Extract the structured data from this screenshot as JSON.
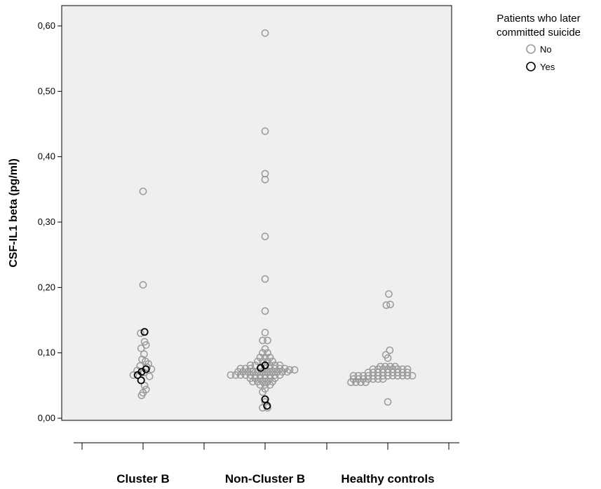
{
  "chart_data": {
    "type": "scatter",
    "title": "",
    "xlabel": "",
    "ylabel": "CSF-IL1 beta (pg/ml)",
    "ylim": [
      -0.02,
      0.64
    ],
    "yticks": [
      0.0,
      0.1,
      0.2,
      0.3,
      0.4,
      0.5,
      0.6
    ],
    "ytick_labels": [
      "0,00",
      "0,10",
      "0,20",
      "0,30",
      "0,40",
      "0,50",
      "0,60"
    ],
    "categories": [
      "Cluster B",
      "Non-Cluster B",
      "Healthy controls"
    ],
    "grid": false,
    "legend": {
      "title_lines": [
        "Patients who later",
        "committed suicide"
      ],
      "position": "top-right, outside plot",
      "entries": [
        {
          "label": "No",
          "color": "#9a9a9a"
        },
        {
          "label": "Yes",
          "color": "#000000"
        }
      ]
    },
    "series": [
      {
        "name": "No",
        "color": "#9a9a9a",
        "points": [
          {
            "category": 0,
            "offset": 0,
            "y": 0.347
          },
          {
            "category": 0,
            "offset": 0,
            "y": 0.204
          },
          {
            "category": 0,
            "offset": -0.5,
            "y": 0.13
          },
          {
            "category": 0,
            "offset": 0.3,
            "y": 0.117
          },
          {
            "category": 0,
            "offset": 0.6,
            "y": 0.112
          },
          {
            "category": 0,
            "offset": -0.4,
            "y": 0.107
          },
          {
            "category": 0,
            "offset": 0.2,
            "y": 0.098
          },
          {
            "category": 0,
            "offset": -0.2,
            "y": 0.09
          },
          {
            "category": 0,
            "offset": 0.5,
            "y": 0.087
          },
          {
            "category": 0,
            "offset": 1.1,
            "y": 0.083
          },
          {
            "category": 0,
            "offset": -0.6,
            "y": 0.08
          },
          {
            "category": 0,
            "offset": 0.8,
            "y": 0.078
          },
          {
            "category": 0,
            "offset": 1.7,
            "y": 0.075
          },
          {
            "category": 0,
            "offset": -1.2,
            "y": 0.073
          },
          {
            "category": 0,
            "offset": 0.2,
            "y": 0.07
          },
          {
            "category": 0,
            "offset": -2.0,
            "y": 0.066
          },
          {
            "category": 0,
            "offset": 1.3,
            "y": 0.064
          },
          {
            "category": 0,
            "offset": 0.3,
            "y": 0.05
          },
          {
            "category": 0,
            "offset": 0.6,
            "y": 0.044
          },
          {
            "category": 0,
            "offset": 0.0,
            "y": 0.039
          },
          {
            "category": 0,
            "offset": -0.3,
            "y": 0.035
          },
          {
            "category": 1,
            "offset": 0,
            "y": 0.589
          },
          {
            "category": 1,
            "offset": 0,
            "y": 0.439
          },
          {
            "category": 1,
            "offset": 0,
            "y": 0.374
          },
          {
            "category": 1,
            "offset": 0,
            "y": 0.365
          },
          {
            "category": 1,
            "offset": 0,
            "y": 0.278
          },
          {
            "category": 1,
            "offset": 0,
            "y": 0.213
          },
          {
            "category": 1,
            "offset": 0,
            "y": 0.164
          },
          {
            "category": 1,
            "offset": 0,
            "y": 0.131
          },
          {
            "category": 1,
            "offset": -0.5,
            "y": 0.119
          },
          {
            "category": 1,
            "offset": 0.5,
            "y": 0.119
          },
          {
            "category": 1,
            "offset": 0,
            "y": 0.106
          },
          {
            "category": 1,
            "offset": -0.5,
            "y": 0.1
          },
          {
            "category": 1,
            "offset": 0.5,
            "y": 0.1
          },
          {
            "category": 1,
            "offset": -1,
            "y": 0.093
          },
          {
            "category": 1,
            "offset": 0,
            "y": 0.093
          },
          {
            "category": 1,
            "offset": 1,
            "y": 0.093
          },
          {
            "category": 1,
            "offset": -1.5,
            "y": 0.087
          },
          {
            "category": 1,
            "offset": -0.5,
            "y": 0.087
          },
          {
            "category": 1,
            "offset": 0.5,
            "y": 0.087
          },
          {
            "category": 1,
            "offset": 1.5,
            "y": 0.087
          },
          {
            "category": 1,
            "offset": -3,
            "y": 0.081
          },
          {
            "category": 1,
            "offset": -2,
            "y": 0.081
          },
          {
            "category": 1,
            "offset": 1,
            "y": 0.081
          },
          {
            "category": 1,
            "offset": 2,
            "y": 0.081
          },
          {
            "category": 1,
            "offset": 3,
            "y": 0.081
          },
          {
            "category": 1,
            "offset": -5,
            "y": 0.076
          },
          {
            "category": 1,
            "offset": -4,
            "y": 0.076
          },
          {
            "category": 1,
            "offset": -3,
            "y": 0.076
          },
          {
            "category": 1,
            "offset": -1,
            "y": 0.076
          },
          {
            "category": 1,
            "offset": 0,
            "y": 0.076
          },
          {
            "category": 1,
            "offset": 1,
            "y": 0.076
          },
          {
            "category": 1,
            "offset": 2,
            "y": 0.076
          },
          {
            "category": 1,
            "offset": 3,
            "y": 0.076
          },
          {
            "category": 1,
            "offset": 4,
            "y": 0.076
          },
          {
            "category": 1,
            "offset": 5,
            "y": 0.074
          },
          {
            "category": 1,
            "offset": 6,
            "y": 0.074
          },
          {
            "category": 1,
            "offset": -5.5,
            "y": 0.071
          },
          {
            "category": 1,
            "offset": -4.5,
            "y": 0.071
          },
          {
            "category": 1,
            "offset": -3.5,
            "y": 0.071
          },
          {
            "category": 1,
            "offset": -2.5,
            "y": 0.071
          },
          {
            "category": 1,
            "offset": -1.5,
            "y": 0.071
          },
          {
            "category": 1,
            "offset": -0.5,
            "y": 0.071
          },
          {
            "category": 1,
            "offset": 0.5,
            "y": 0.071
          },
          {
            "category": 1,
            "offset": 1.5,
            "y": 0.071
          },
          {
            "category": 1,
            "offset": 2.5,
            "y": 0.071
          },
          {
            "category": 1,
            "offset": 3.5,
            "y": 0.071
          },
          {
            "category": 1,
            "offset": 4.5,
            "y": 0.071
          },
          {
            "category": 1,
            "offset": -7,
            "y": 0.066
          },
          {
            "category": 1,
            "offset": -6,
            "y": 0.066
          },
          {
            "category": 1,
            "offset": -5,
            "y": 0.066
          },
          {
            "category": 1,
            "offset": -4,
            "y": 0.066
          },
          {
            "category": 1,
            "offset": -3,
            "y": 0.066
          },
          {
            "category": 1,
            "offset": -2,
            "y": 0.066
          },
          {
            "category": 1,
            "offset": -1,
            "y": 0.066
          },
          {
            "category": 1,
            "offset": 0,
            "y": 0.066
          },
          {
            "category": 1,
            "offset": 1,
            "y": 0.066
          },
          {
            "category": 1,
            "offset": 2,
            "y": 0.066
          },
          {
            "category": 1,
            "offset": 3,
            "y": 0.066
          },
          {
            "category": 1,
            "offset": -3,
            "y": 0.061
          },
          {
            "category": 1,
            "offset": -2,
            "y": 0.061
          },
          {
            "category": 1,
            "offset": -1,
            "y": 0.061
          },
          {
            "category": 1,
            "offset": 0,
            "y": 0.061
          },
          {
            "category": 1,
            "offset": 1,
            "y": 0.061
          },
          {
            "category": 1,
            "offset": 2,
            "y": 0.061
          },
          {
            "category": 1,
            "offset": -2.5,
            "y": 0.056
          },
          {
            "category": 1,
            "offset": -1.5,
            "y": 0.056
          },
          {
            "category": 1,
            "offset": -0.5,
            "y": 0.056
          },
          {
            "category": 1,
            "offset": 0.5,
            "y": 0.056
          },
          {
            "category": 1,
            "offset": 1.5,
            "y": 0.056
          },
          {
            "category": 1,
            "offset": -1,
            "y": 0.051
          },
          {
            "category": 1,
            "offset": 0,
            "y": 0.051
          },
          {
            "category": 1,
            "offset": 1,
            "y": 0.051
          },
          {
            "category": 1,
            "offset": 0,
            "y": 0.045
          },
          {
            "category": 1,
            "offset": -0.5,
            "y": 0.04
          },
          {
            "category": 1,
            "offset": 0,
            "y": 0.025
          },
          {
            "category": 1,
            "offset": -0.5,
            "y": 0.016
          },
          {
            "category": 1,
            "offset": 0.5,
            "y": 0.016
          },
          {
            "category": 2,
            "offset": 0.2,
            "y": 0.19
          },
          {
            "category": 2,
            "offset": -0.3,
            "y": 0.173
          },
          {
            "category": 2,
            "offset": 0.5,
            "y": 0.174
          },
          {
            "category": 2,
            "offset": 0.4,
            "y": 0.104
          },
          {
            "category": 2,
            "offset": -0.4,
            "y": 0.097
          },
          {
            "category": 2,
            "offset": 0,
            "y": 0.092
          },
          {
            "category": 2,
            "offset": -1.5,
            "y": 0.079
          },
          {
            "category": 2,
            "offset": -0.5,
            "y": 0.079
          },
          {
            "category": 2,
            "offset": 0.5,
            "y": 0.079
          },
          {
            "category": 2,
            "offset": 1.5,
            "y": 0.079
          },
          {
            "category": 2,
            "offset": -3,
            "y": 0.075
          },
          {
            "category": 2,
            "offset": -2,
            "y": 0.075
          },
          {
            "category": 2,
            "offset": -1,
            "y": 0.075
          },
          {
            "category": 2,
            "offset": 0,
            "y": 0.075
          },
          {
            "category": 2,
            "offset": 1,
            "y": 0.075
          },
          {
            "category": 2,
            "offset": 2,
            "y": 0.075
          },
          {
            "category": 2,
            "offset": 3,
            "y": 0.075
          },
          {
            "category": 2,
            "offset": 4,
            "y": 0.075
          },
          {
            "category": 2,
            "offset": -4,
            "y": 0.07
          },
          {
            "category": 2,
            "offset": -3,
            "y": 0.07
          },
          {
            "category": 2,
            "offset": -2,
            "y": 0.07
          },
          {
            "category": 2,
            "offset": -1,
            "y": 0.07
          },
          {
            "category": 2,
            "offset": 0,
            "y": 0.07
          },
          {
            "category": 2,
            "offset": 1,
            "y": 0.07
          },
          {
            "category": 2,
            "offset": 2,
            "y": 0.07
          },
          {
            "category": 2,
            "offset": 3,
            "y": 0.07
          },
          {
            "category": 2,
            "offset": 4,
            "y": 0.07
          },
          {
            "category": 2,
            "offset": -7,
            "y": 0.065
          },
          {
            "category": 2,
            "offset": -6,
            "y": 0.065
          },
          {
            "category": 2,
            "offset": -5,
            "y": 0.065
          },
          {
            "category": 2,
            "offset": -4,
            "y": 0.065
          },
          {
            "category": 2,
            "offset": -3,
            "y": 0.065
          },
          {
            "category": 2,
            "offset": -2,
            "y": 0.065
          },
          {
            "category": 2,
            "offset": -1,
            "y": 0.065
          },
          {
            "category": 2,
            "offset": 0,
            "y": 0.065
          },
          {
            "category": 2,
            "offset": 1,
            "y": 0.065
          },
          {
            "category": 2,
            "offset": 2,
            "y": 0.065
          },
          {
            "category": 2,
            "offset": 3,
            "y": 0.065
          },
          {
            "category": 2,
            "offset": 4,
            "y": 0.065
          },
          {
            "category": 2,
            "offset": 5,
            "y": 0.065
          },
          {
            "category": 2,
            "offset": -7,
            "y": 0.06
          },
          {
            "category": 2,
            "offset": -6,
            "y": 0.06
          },
          {
            "category": 2,
            "offset": -5,
            "y": 0.06
          },
          {
            "category": 2,
            "offset": -4,
            "y": 0.06
          },
          {
            "category": 2,
            "offset": -3,
            "y": 0.06
          },
          {
            "category": 2,
            "offset": -2,
            "y": 0.06
          },
          {
            "category": 2,
            "offset": -1,
            "y": 0.06
          },
          {
            "category": 2,
            "offset": -7.5,
            "y": 0.055
          },
          {
            "category": 2,
            "offset": -6.5,
            "y": 0.055
          },
          {
            "category": 2,
            "offset": -5.5,
            "y": 0.055
          },
          {
            "category": 2,
            "offset": -4.5,
            "y": 0.055
          },
          {
            "category": 2,
            "offset": 0,
            "y": 0.025
          }
        ]
      },
      {
        "name": "Yes",
        "color": "#000000",
        "points": [
          {
            "category": 0,
            "offset": 0.3,
            "y": 0.132
          },
          {
            "category": 0,
            "offset": 0.6,
            "y": 0.075
          },
          {
            "category": 0,
            "offset": -0.3,
            "y": 0.071
          },
          {
            "category": 0,
            "offset": -1.1,
            "y": 0.066
          },
          {
            "category": 0,
            "offset": -0.4,
            "y": 0.058
          },
          {
            "category": 1,
            "offset": 0,
            "y": 0.081
          },
          {
            "category": 1,
            "offset": -0.9,
            "y": 0.077
          },
          {
            "category": 1,
            "offset": 0,
            "y": 0.029
          },
          {
            "category": 1,
            "offset": 0.4,
            "y": 0.019
          }
        ]
      }
    ]
  }
}
